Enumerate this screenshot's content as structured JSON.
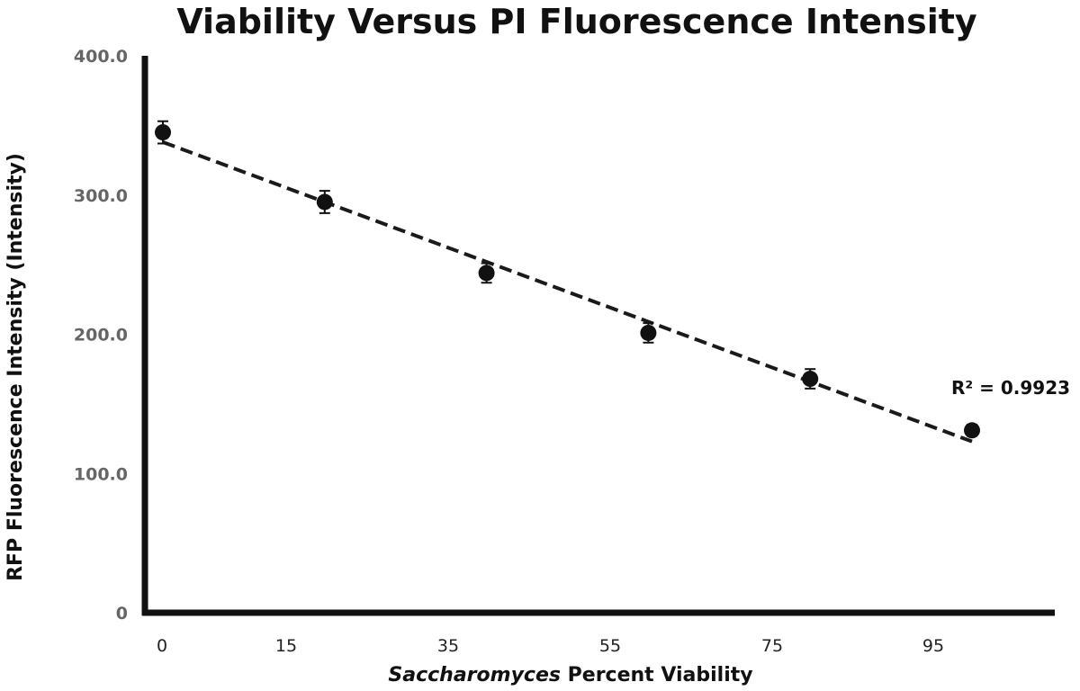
{
  "chart_data": {
    "type": "scatter",
    "title": "Viability Versus PI Fluorescence Intensity",
    "xlabel_italic": "Saccharomyces",
    "xlabel_rest": " Percent Viability",
    "ylabel": "RFP Fluorescence Intensity (Intensity)",
    "x_tick_labels": [
      "0",
      "15",
      "35",
      "55",
      "75",
      "95"
    ],
    "y_tick_labels": [
      "0",
      "100.0",
      "200.0",
      "300.0",
      "400.0"
    ],
    "y_tick_values": [
      0,
      100,
      200,
      300,
      400
    ],
    "ylim": [
      0,
      400
    ],
    "series": [
      {
        "name": "Viability",
        "x": [
          0,
          20,
          40,
          60,
          80,
          100
        ],
        "y": [
          345,
          295,
          244,
          201,
          168,
          131
        ],
        "error": [
          8,
          8,
          7,
          7,
          7,
          4
        ]
      }
    ],
    "trendline": {
      "style": "dashed",
      "x": [
        0,
        100
      ],
      "y": [
        338,
        123
      ]
    },
    "annotation": "R² = 0.9923",
    "colors": {
      "marker": "#111111",
      "axis": "#111111",
      "trend": "#1a1a1a",
      "ytick": "#666666"
    }
  }
}
